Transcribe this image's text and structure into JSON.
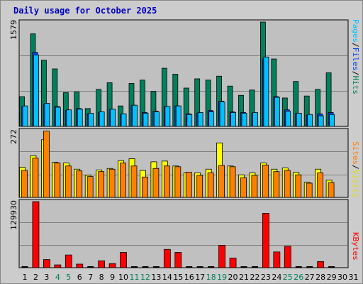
{
  "title": "Daily usage for October 2025",
  "colors": {
    "pages": "#00805c",
    "files": "#0040ff",
    "hits": "#00c0ff",
    "visits": "#ffff00",
    "sites": "#ff8000",
    "kbytes": "#ff0000",
    "weekend": "#00805c",
    "weekday": "#000000"
  },
  "legend": {
    "hits_panel": {
      "pages": "Pages",
      "sep1": "/",
      "files": "Files",
      "sep2": "/",
      "hits": "Hits"
    },
    "visits_panel": {
      "sites": "Sites",
      "sep": "/",
      "visits": "Visits"
    },
    "kbytes_panel": {
      "kbytes": "KBytes"
    }
  },
  "chart_data": [
    {
      "type": "bar",
      "name_panel": "hits",
      "ymax_label": "1579",
      "ylim": [
        0,
        1579
      ],
      "x": [
        1,
        2,
        3,
        4,
        5,
        6,
        7,
        8,
        9,
        10,
        11,
        12,
        13,
        14,
        15,
        16,
        17,
        18,
        19,
        20,
        21,
        22,
        23,
        24,
        25,
        26,
        27,
        28,
        29,
        30,
        31
      ],
      "weekend_days": [
        4,
        5,
        11,
        12,
        18,
        19,
        25,
        26
      ],
      "series": [
        {
          "name": "Pages",
          "values": [
            450,
            1400,
            1000,
            870,
            510,
            520,
            270,
            560,
            660,
            310,
            650,
            700,
            530,
            880,
            790,
            580,
            720,
            700,
            760,
            610,
            470,
            550,
            1579,
            1020,
            430,
            680,
            460,
            560,
            810,
            0,
            0
          ]
        },
        {
          "name": "Files",
          "values": [
            300,
            1120,
            340,
            300,
            240,
            270,
            190,
            210,
            260,
            180,
            320,
            210,
            230,
            300,
            310,
            190,
            200,
            240,
            380,
            220,
            210,
            200,
            1020,
            450,
            250,
            200,
            170,
            190,
            210,
            0,
            0
          ]
        },
        {
          "name": "Hits",
          "values": [
            310,
            1080,
            350,
            290,
            250,
            260,
            200,
            220,
            260,
            190,
            320,
            200,
            220,
            300,
            310,
            180,
            210,
            220,
            370,
            210,
            200,
            210,
            1050,
            440,
            230,
            200,
            180,
            160,
            180,
            0,
            0
          ]
        }
      ]
    },
    {
      "type": "bar",
      "name_panel": "visits",
      "ymax_label": "272",
      "ylim": [
        0,
        272
      ],
      "x": [
        1,
        2,
        3,
        4,
        5,
        6,
        7,
        8,
        9,
        10,
        11,
        12,
        13,
        14,
        15,
        16,
        17,
        18,
        19,
        20,
        21,
        22,
        23,
        24,
        25,
        26,
        27,
        28,
        29,
        30,
        31
      ],
      "weekend_days": [
        4,
        5,
        11,
        12,
        18,
        19,
        25,
        26
      ],
      "series": [
        {
          "name": "Visits",
          "values": [
            123,
            170,
            235,
            143,
            140,
            115,
            90,
            112,
            118,
            150,
            158,
            110,
            145,
            148,
            128,
            100,
            100,
            115,
            222,
            128,
            92,
            100,
            140,
            115,
            120,
            102,
            62,
            115,
            70,
            0,
            0
          ]
        },
        {
          "name": "Sites",
          "values": [
            110,
            160,
            270,
            140,
            128,
            108,
            85,
            105,
            115,
            140,
            128,
            83,
            118,
            128,
            125,
            103,
            90,
            100,
            130,
            125,
            80,
            90,
            132,
            105,
            110,
            92,
            58,
            100,
            60,
            0,
            0
          ]
        }
      ]
    },
    {
      "type": "bar",
      "name_panel": "kbytes",
      "ymax_label": "129930",
      "ylim": [
        0,
        129930
      ],
      "x": [
        1,
        2,
        3,
        4,
        5,
        6,
        7,
        8,
        9,
        10,
        11,
        12,
        13,
        14,
        15,
        16,
        17,
        18,
        19,
        20,
        21,
        22,
        23,
        24,
        25,
        26,
        27,
        28,
        29,
        30,
        31
      ],
      "weekend_days": [
        4,
        5,
        11,
        12,
        18,
        19,
        25,
        26
      ],
      "series": [
        {
          "name": "KBytes",
          "values": [
            0,
            129930,
            16000,
            5500,
            25000,
            7000,
            0,
            13500,
            8000,
            30000,
            0,
            0,
            0,
            36000,
            30000,
            0,
            0,
            0,
            44000,
            19000,
            0,
            0,
            107000,
            31000,
            42000,
            0,
            0,
            12000,
            0,
            0,
            0
          ]
        }
      ]
    }
  ]
}
